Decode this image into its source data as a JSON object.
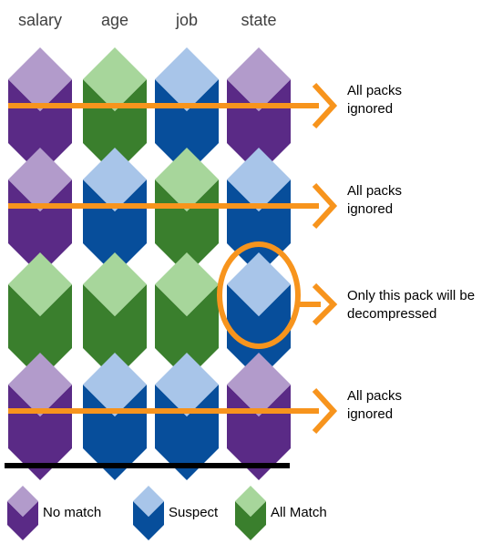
{
  "columns": [
    "salary",
    "age",
    "job",
    "state"
  ],
  "colors": {
    "no_match": {
      "top": "#b29bcb",
      "body": "#5a2a86"
    },
    "suspect": {
      "top": "#a8c5e9",
      "body": "#074e9b"
    },
    "all_match": {
      "top": "#a7d69b",
      "body": "#3a7f2d"
    },
    "arrow": "#f7941d",
    "baseline": "#000000"
  },
  "rows": [
    {
      "packs": [
        "no_match",
        "all_match",
        "suspect",
        "no_match"
      ],
      "result": [
        "All packs",
        "ignored"
      ],
      "highlight": null
    },
    {
      "packs": [
        "no_match",
        "suspect",
        "all_match",
        "suspect"
      ],
      "result": [
        "All packs",
        "ignored"
      ],
      "highlight": null
    },
    {
      "packs": [
        "all_match",
        "all_match",
        "all_match",
        "suspect"
      ],
      "result": [
        "Only this pack will be",
        "decompressed"
      ],
      "highlight": 3
    },
    {
      "packs": [
        "no_match",
        "suspect",
        "suspect",
        "no_match"
      ],
      "result": [
        "All packs",
        "ignored"
      ],
      "highlight": null
    }
  ],
  "legend": [
    {
      "type": "no_match",
      "label": "No match"
    },
    {
      "type": "suspect",
      "label": "Suspect"
    },
    {
      "type": "all_match",
      "label": "All Match"
    }
  ]
}
